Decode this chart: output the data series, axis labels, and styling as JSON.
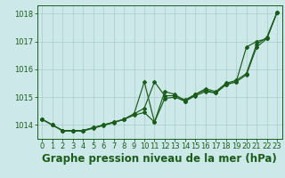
{
  "background_color": "#cce8e8",
  "grid_color": "#aacccc",
  "line_color": "#1a5c1a",
  "xlim": [
    -0.5,
    23.5
  ],
  "ylim": [
    1013.5,
    1018.3
  ],
  "yticks": [
    1014,
    1015,
    1016,
    1017,
    1018
  ],
  "xticks": [
    0,
    1,
    2,
    3,
    4,
    5,
    6,
    7,
    8,
    9,
    10,
    11,
    12,
    13,
    14,
    15,
    16,
    17,
    18,
    19,
    20,
    21,
    22,
    23
  ],
  "series1_x": [
    0,
    1,
    2,
    3,
    4,
    5,
    6,
    7,
    8,
    9,
    10,
    11,
    12,
    13,
    14,
    15,
    16,
    17,
    18,
    19,
    20,
    21,
    22,
    23
  ],
  "series1_y": [
    1014.2,
    1014.0,
    1013.8,
    1013.8,
    1013.8,
    1013.9,
    1014.0,
    1014.1,
    1014.2,
    1014.4,
    1014.6,
    1015.55,
    1015.05,
    1015.05,
    1014.9,
    1015.1,
    1015.3,
    1015.2,
    1015.5,
    1015.6,
    1015.85,
    1016.9,
    1017.15,
    1018.05
  ],
  "series2_x": [
    0,
    1,
    2,
    3,
    4,
    5,
    6,
    7,
    8,
    9,
    10,
    11,
    12,
    13,
    14,
    15,
    16,
    17,
    18,
    19,
    20,
    21,
    22,
    23
  ],
  "series2_y": [
    1014.2,
    1014.0,
    1013.8,
    1013.8,
    1013.8,
    1013.9,
    1014.0,
    1014.1,
    1014.2,
    1014.4,
    1015.55,
    1014.1,
    1015.2,
    1015.1,
    1014.85,
    1015.1,
    1015.25,
    1015.15,
    1015.45,
    1015.55,
    1016.8,
    1017.0,
    1017.1,
    1018.05
  ],
  "series3_x": [
    0,
    1,
    2,
    3,
    4,
    5,
    6,
    7,
    8,
    9,
    10,
    11,
    12,
    13,
    14,
    15,
    16,
    17,
    18,
    19,
    20,
    21,
    22,
    23
  ],
  "series3_y": [
    1014.2,
    1014.0,
    1013.78,
    1013.78,
    1013.78,
    1013.88,
    1013.98,
    1014.08,
    1014.2,
    1014.35,
    1014.45,
    1014.1,
    1014.95,
    1015.0,
    1014.85,
    1015.05,
    1015.2,
    1015.15,
    1015.45,
    1015.55,
    1015.8,
    1016.8,
    1017.1,
    1018.05
  ],
  "xlabel": "Graphe pression niveau de la mer (hPa)",
  "tick_fontsize": 6.0,
  "xlabel_fontsize": 8.5,
  "marker": "D",
  "marker_size": 2.0,
  "linewidth": 0.85
}
